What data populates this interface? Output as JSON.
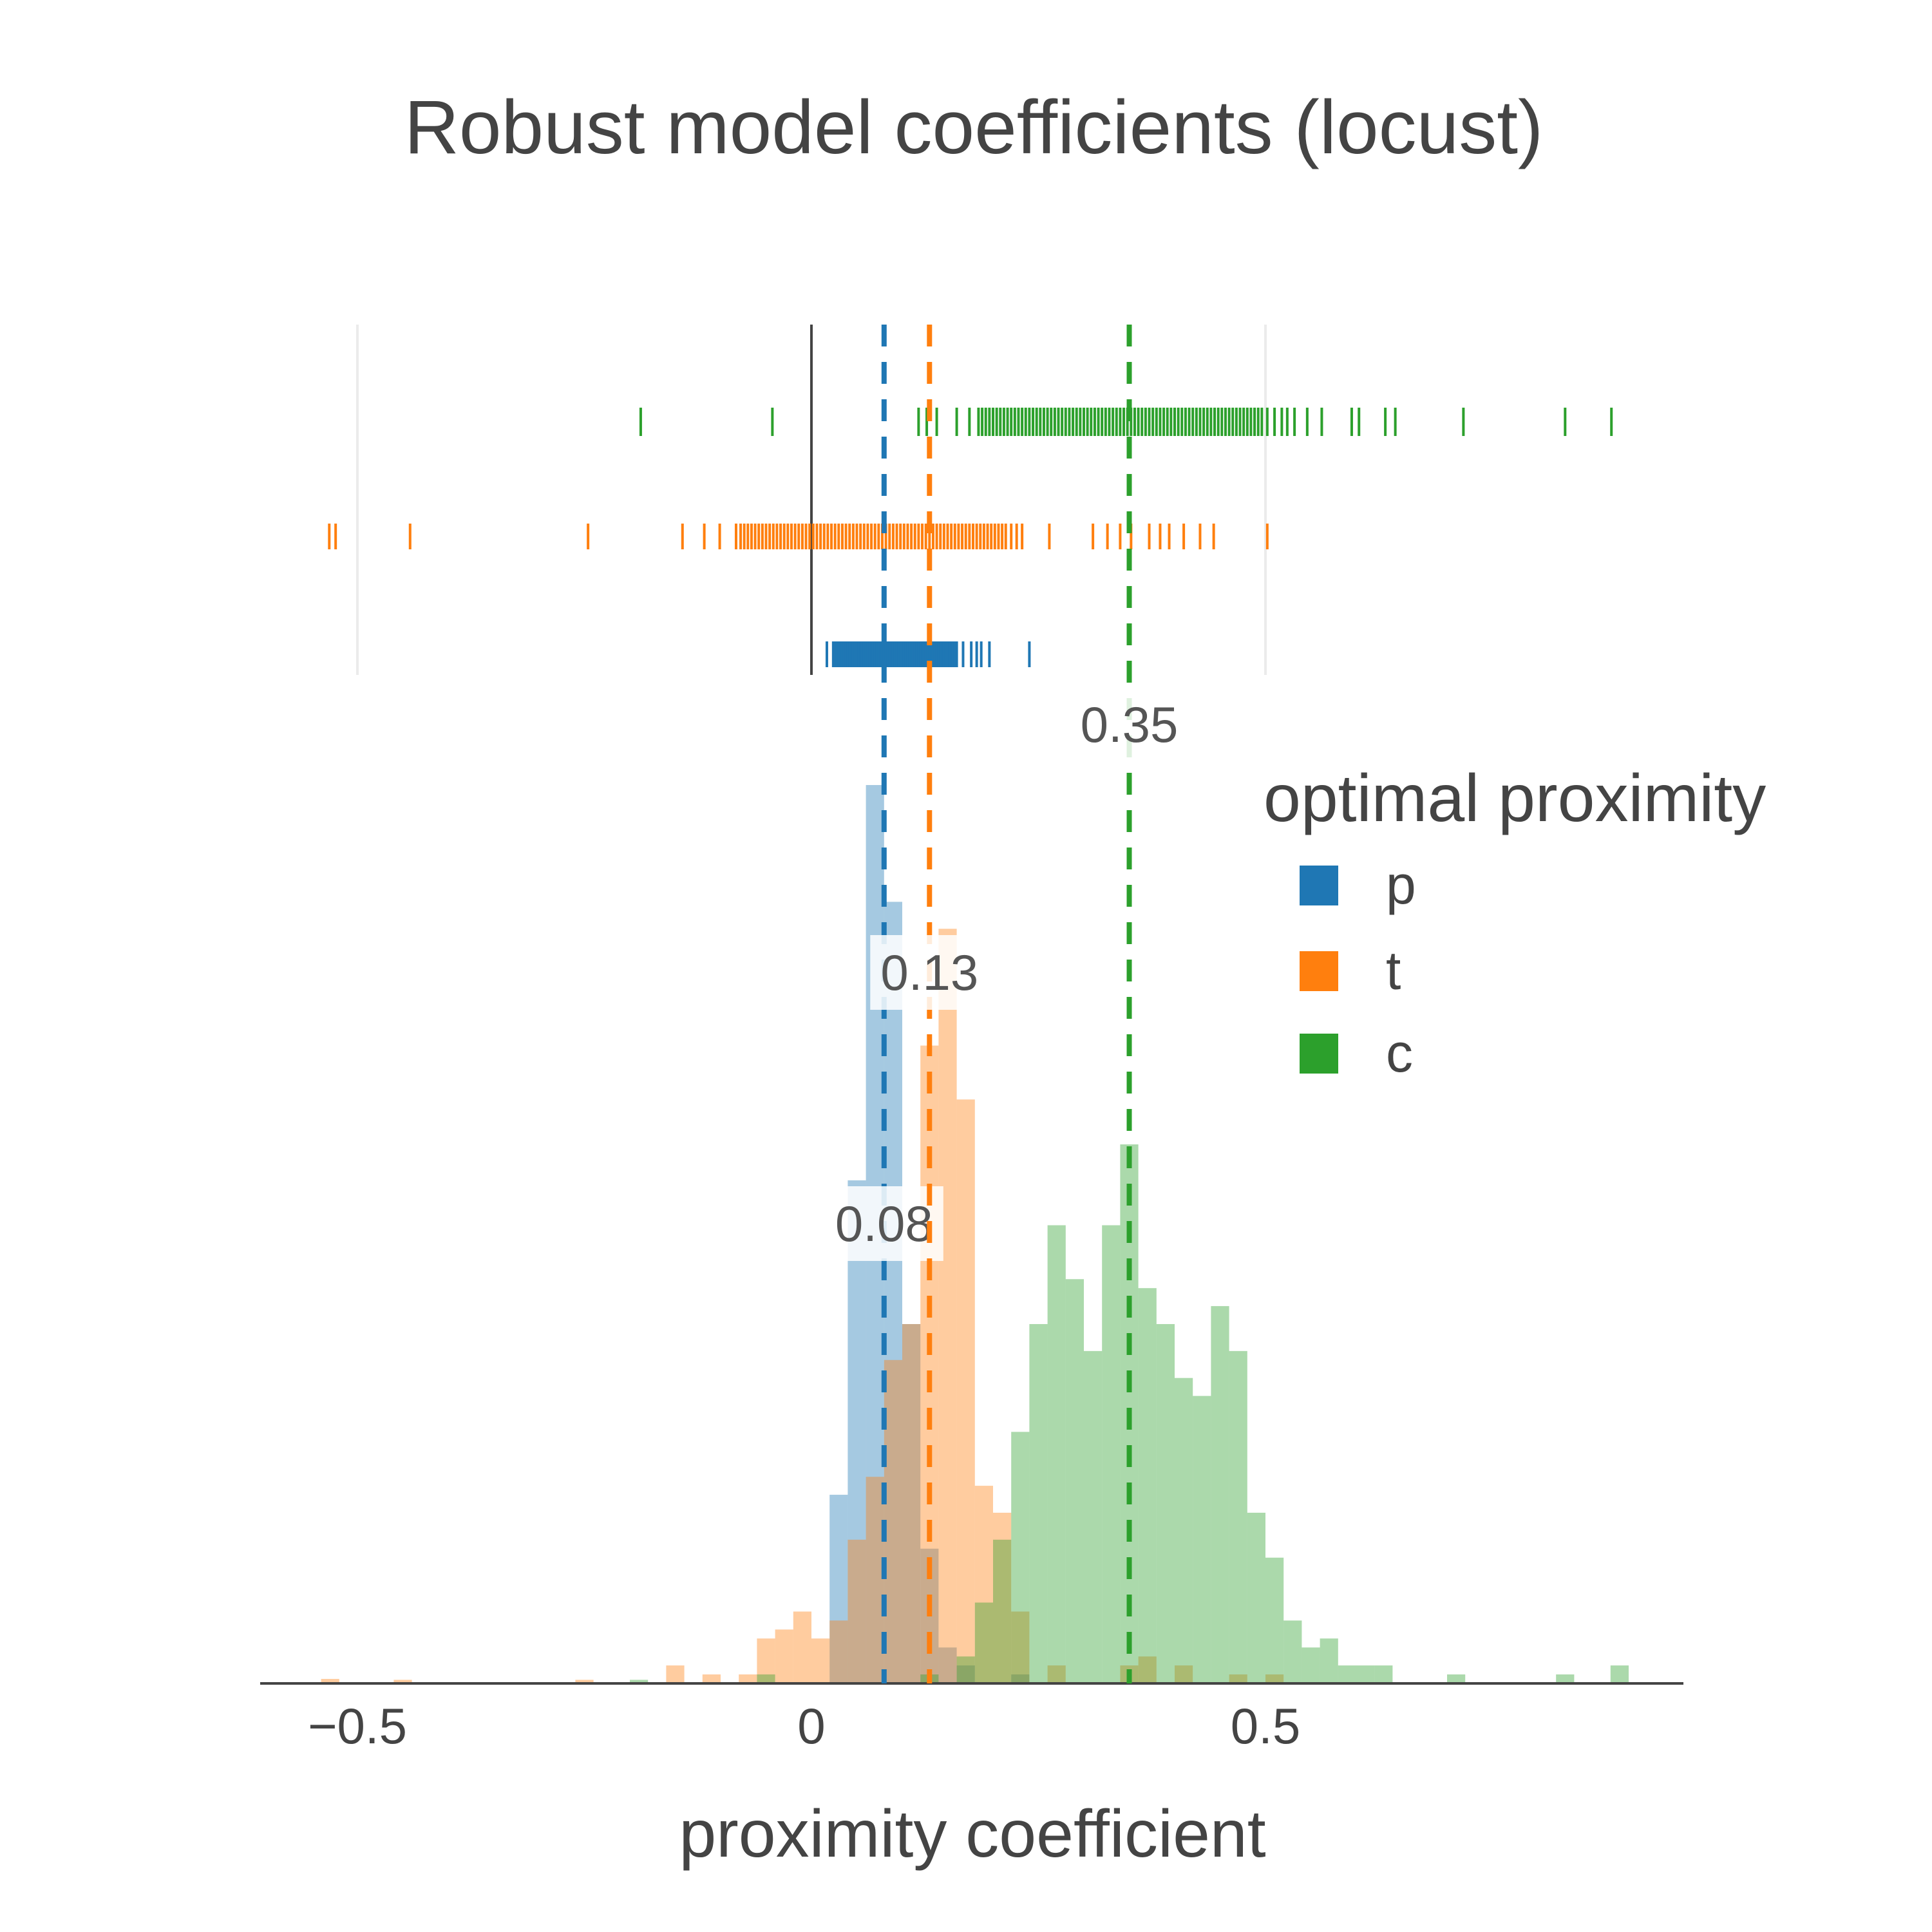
{
  "chart_data": {
    "type": "histogram",
    "title": "Robust model coefficients (locust)",
    "xlabel": "proximity coefficient",
    "ylabel": "",
    "xlim": [
      -0.6,
      0.96
    ],
    "xticks": [
      {
        "value": -0.5,
        "label": "−0.5"
      },
      {
        "value": 0,
        "label": "0"
      },
      {
        "value": 0.5,
        "label": "0.5"
      }
    ],
    "legend": {
      "title": "optimal proximity",
      "position": "right"
    },
    "grid": true,
    "bin_width": 0.02,
    "series": [
      {
        "name": "p",
        "color": "#1f77b4",
        "median": 0.08,
        "median_label": "0.08",
        "histogram": [
          {
            "x0": 0.02,
            "y": 0.21
          },
          {
            "x0": 0.04,
            "y": 0.56
          },
          {
            "x0": 0.06,
            "y": 1.0
          },
          {
            "x0": 0.08,
            "y": 0.87
          },
          {
            "x0": 0.1,
            "y": 0.4
          },
          {
            "x0": 0.12,
            "y": 0.15
          },
          {
            "x0": 0.14,
            "y": 0.04
          },
          {
            "x0": 0.16,
            "y": 0.02
          },
          {
            "x0": 0.22,
            "y": 0.01
          }
        ],
        "rug": [
          0.017,
          0.024,
          0.026,
          0.028,
          0.03,
          0.032,
          0.034,
          0.036,
          0.038,
          0.04,
          0.042,
          0.044,
          0.046,
          0.048,
          0.05,
          0.052,
          0.054,
          0.056,
          0.058,
          0.06,
          0.062,
          0.064,
          0.066,
          0.068,
          0.07,
          0.072,
          0.074,
          0.076,
          0.078,
          0.08,
          0.082,
          0.084,
          0.086,
          0.088,
          0.09,
          0.092,
          0.094,
          0.096,
          0.098,
          0.1,
          0.102,
          0.104,
          0.106,
          0.108,
          0.11,
          0.112,
          0.114,
          0.116,
          0.118,
          0.12,
          0.122,
          0.124,
          0.126,
          0.128,
          0.13,
          0.132,
          0.134,
          0.136,
          0.138,
          0.14,
          0.142,
          0.144,
          0.146,
          0.148,
          0.15,
          0.152,
          0.154,
          0.156,
          0.158,
          0.16,
          0.167,
          0.176,
          0.182,
          0.187,
          0.196,
          0.24
        ]
      },
      {
        "name": "t",
        "color": "#ff7f0e",
        "median": 0.13,
        "median_label": "0.13",
        "histogram": [
          {
            "x0": -0.54,
            "y": 0.005
          },
          {
            "x0": -0.46,
            "y": 0.004
          },
          {
            "x0": -0.26,
            "y": 0.004
          },
          {
            "x0": -0.16,
            "y": 0.02
          },
          {
            "x0": -0.12,
            "y": 0.01
          },
          {
            "x0": -0.08,
            "y": 0.01
          },
          {
            "x0": -0.06,
            "y": 0.05
          },
          {
            "x0": -0.04,
            "y": 0.06
          },
          {
            "x0": -0.02,
            "y": 0.08
          },
          {
            "x0": 0.0,
            "y": 0.05
          },
          {
            "x0": 0.02,
            "y": 0.07
          },
          {
            "x0": 0.04,
            "y": 0.16
          },
          {
            "x0": 0.06,
            "y": 0.23
          },
          {
            "x0": 0.08,
            "y": 0.36
          },
          {
            "x0": 0.1,
            "y": 0.4
          },
          {
            "x0": 0.12,
            "y": 0.71
          },
          {
            "x0": 0.14,
            "y": 0.84
          },
          {
            "x0": 0.16,
            "y": 0.65
          },
          {
            "x0": 0.18,
            "y": 0.22
          },
          {
            "x0": 0.2,
            "y": 0.19
          },
          {
            "x0": 0.22,
            "y": 0.08
          },
          {
            "x0": 0.26,
            "y": 0.02
          },
          {
            "x0": 0.34,
            "y": 0.02
          },
          {
            "x0": 0.36,
            "y": 0.03
          },
          {
            "x0": 0.4,
            "y": 0.02
          },
          {
            "x0": 0.46,
            "y": 0.01
          },
          {
            "x0": 0.5,
            "y": 0.01
          }
        ],
        "rug": [
          -0.531,
          -0.524,
          -0.442,
          -0.246,
          -0.142,
          -0.118,
          -0.101,
          -0.083,
          -0.078,
          -0.074,
          -0.07,
          -0.066,
          -0.062,
          -0.058,
          -0.054,
          -0.05,
          -0.046,
          -0.042,
          -0.038,
          -0.034,
          -0.03,
          -0.026,
          -0.022,
          -0.018,
          -0.014,
          -0.01,
          -0.006,
          -0.002,
          0.002,
          0.006,
          0.01,
          0.014,
          0.018,
          0.022,
          0.026,
          0.03,
          0.034,
          0.038,
          0.042,
          0.046,
          0.05,
          0.054,
          0.058,
          0.062,
          0.066,
          0.07,
          0.074,
          0.078,
          0.082,
          0.086,
          0.09,
          0.094,
          0.098,
          0.102,
          0.106,
          0.11,
          0.114,
          0.118,
          0.122,
          0.126,
          0.13,
          0.134,
          0.138,
          0.142,
          0.146,
          0.15,
          0.154,
          0.158,
          0.162,
          0.166,
          0.17,
          0.174,
          0.178,
          0.182,
          0.186,
          0.19,
          0.194,
          0.198,
          0.202,
          0.206,
          0.21,
          0.214,
          0.22,
          0.226,
          0.232,
          0.262,
          0.31,
          0.326,
          0.34,
          0.352,
          0.372,
          0.384,
          0.394,
          0.41,
          0.428,
          0.443,
          0.502
        ]
      },
      {
        "name": "c",
        "color": "#2ca02c",
        "median": 0.35,
        "median_label": "0.35",
        "histogram": [
          {
            "x0": -0.2,
            "y": 0.004
          },
          {
            "x0": -0.06,
            "y": 0.01
          },
          {
            "x0": 0.12,
            "y": 0.01
          },
          {
            "x0": 0.16,
            "y": 0.03
          },
          {
            "x0": 0.18,
            "y": 0.09
          },
          {
            "x0": 0.2,
            "y": 0.16
          },
          {
            "x0": 0.22,
            "y": 0.28
          },
          {
            "x0": 0.24,
            "y": 0.4
          },
          {
            "x0": 0.26,
            "y": 0.51
          },
          {
            "x0": 0.28,
            "y": 0.45
          },
          {
            "x0": 0.3,
            "y": 0.37
          },
          {
            "x0": 0.32,
            "y": 0.51
          },
          {
            "x0": 0.34,
            "y": 0.6
          },
          {
            "x0": 0.36,
            "y": 0.44
          },
          {
            "x0": 0.38,
            "y": 0.4
          },
          {
            "x0": 0.4,
            "y": 0.34
          },
          {
            "x0": 0.42,
            "y": 0.32
          },
          {
            "x0": 0.44,
            "y": 0.42
          },
          {
            "x0": 0.46,
            "y": 0.37
          },
          {
            "x0": 0.48,
            "y": 0.19
          },
          {
            "x0": 0.5,
            "y": 0.14
          },
          {
            "x0": 0.52,
            "y": 0.07
          },
          {
            "x0": 0.54,
            "y": 0.04
          },
          {
            "x0": 0.56,
            "y": 0.05
          },
          {
            "x0": 0.58,
            "y": 0.02
          },
          {
            "x0": 0.6,
            "y": 0.02
          },
          {
            "x0": 0.62,
            "y": 0.02
          },
          {
            "x0": 0.7,
            "y": 0.01
          },
          {
            "x0": 0.82,
            "y": 0.01
          },
          {
            "x0": 0.88,
            "y": 0.02
          }
        ],
        "rug": [
          -0.188,
          -0.043,
          0.118,
          0.127,
          0.138,
          0.16,
          0.174,
          0.184,
          0.188,
          0.192,
          0.196,
          0.2,
          0.204,
          0.208,
          0.212,
          0.216,
          0.22,
          0.224,
          0.228,
          0.232,
          0.236,
          0.24,
          0.244,
          0.248,
          0.252,
          0.256,
          0.26,
          0.264,
          0.268,
          0.272,
          0.276,
          0.28,
          0.284,
          0.288,
          0.292,
          0.296,
          0.3,
          0.304,
          0.308,
          0.312,
          0.316,
          0.32,
          0.324,
          0.328,
          0.332,
          0.336,
          0.34,
          0.344,
          0.348,
          0.352,
          0.356,
          0.36,
          0.364,
          0.368,
          0.372,
          0.376,
          0.38,
          0.384,
          0.388,
          0.392,
          0.396,
          0.4,
          0.404,
          0.408,
          0.412,
          0.416,
          0.42,
          0.424,
          0.428,
          0.432,
          0.436,
          0.44,
          0.444,
          0.448,
          0.452,
          0.456,
          0.46,
          0.464,
          0.468,
          0.472,
          0.476,
          0.48,
          0.484,
          0.488,
          0.492,
          0.496,
          0.502,
          0.51,
          0.518,
          0.524,
          0.532,
          0.546,
          0.562,
          0.595,
          0.603,
          0.632,
          0.643,
          0.718,
          0.83,
          0.881
        ]
      }
    ]
  }
}
